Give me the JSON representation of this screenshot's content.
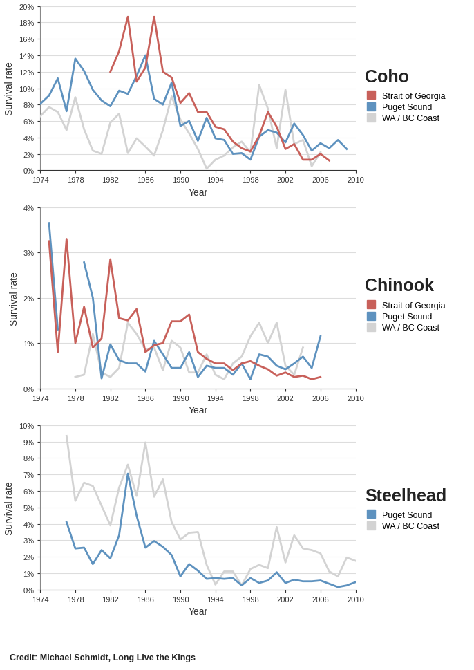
{
  "chart_data": [
    {
      "type": "line",
      "title": "Coho",
      "xlabel": "Year",
      "ylabel": "Survival rate",
      "x": [
        1974,
        1975,
        1976,
        1977,
        1978,
        1979,
        1980,
        1981,
        1982,
        1983,
        1984,
        1985,
        1986,
        1987,
        1988,
        1989,
        1990,
        1991,
        1992,
        1993,
        1994,
        1995,
        1996,
        1997,
        1998,
        1999,
        2000,
        2001,
        2002,
        2003,
        2004,
        2005,
        2006,
        2007,
        2008,
        2009
      ],
      "series": [
        {
          "name": "Strait of Georgia",
          "color": "#c8605a",
          "values": [
            null,
            null,
            null,
            null,
            null,
            null,
            null,
            null,
            12.0,
            14.5,
            18.7,
            10.8,
            12.5,
            18.7,
            12.0,
            11.3,
            8.2,
            9.4,
            7.1,
            7.1,
            5.3,
            5.0,
            3.5,
            2.7,
            2.3,
            4.2,
            7.1,
            5.3,
            2.6,
            3.2,
            1.3,
            1.3,
            2.0,
            1.2,
            null,
            null
          ]
        },
        {
          "name": "Puget Sound",
          "color": "#5e92bf",
          "values": [
            8.1,
            9.1,
            11.2,
            7.2,
            13.6,
            12.1,
            9.8,
            8.5,
            7.8,
            9.7,
            9.3,
            11.5,
            14.0,
            8.7,
            8.0,
            10.7,
            5.4,
            6.0,
            3.6,
            6.4,
            3.9,
            3.7,
            2.0,
            2.1,
            1.3,
            4.1,
            4.9,
            4.6,
            3.4,
            5.7,
            4.3,
            2.4,
            3.3,
            2.7,
            3.7,
            2.6
          ]
        },
        {
          "name": "WA / BC Coast",
          "color": "#d3d3d3",
          "values": [
            6.6,
            7.7,
            7.1,
            4.9,
            8.9,
            5.0,
            2.4,
            2.0,
            5.8,
            6.9,
            2.1,
            3.9,
            2.9,
            1.8,
            4.9,
            9.0,
            6.2,
            4.5,
            2.6,
            0.2,
            1.3,
            1.8,
            2.8,
            3.5,
            2.2,
            10.4,
            7.5,
            2.7,
            9.8,
            3.2,
            3.7,
            0.5,
            2.2,
            null,
            null,
            null
          ]
        }
      ],
      "xlim": [
        1974,
        2010
      ],
      "xticks": [
        1974,
        1978,
        1982,
        1986,
        1990,
        1994,
        1998,
        2002,
        2006,
        2010
      ],
      "ylim": [
        0,
        20
      ],
      "yticks": [
        {
          "value": 0,
          "label": "0%"
        },
        {
          "value": 2,
          "label": "2%"
        },
        {
          "value": 4,
          "label": "4%"
        },
        {
          "value": 6,
          "label": "6%"
        },
        {
          "value": 8,
          "label": "8%"
        },
        {
          "value": 10,
          "label": "10%"
        },
        {
          "value": 12,
          "label": "12%"
        },
        {
          "value": 14,
          "label": "14%"
        },
        {
          "value": 16,
          "label": "16%"
        },
        {
          "value": 18,
          "label": "18%"
        },
        {
          "value": 20,
          "label": "20%"
        }
      ],
      "grid": true,
      "legend": "upper left"
    },
    {
      "type": "line",
      "title": "Chinook",
      "xlabel": "Year",
      "ylabel": "Survival rate",
      "x": [
        1975,
        1976,
        1977,
        1978,
        1979,
        1980,
        1981,
        1982,
        1983,
        1984,
        1985,
        1986,
        1987,
        1988,
        1989,
        1990,
        1991,
        1992,
        1993,
        1994,
        1995,
        1996,
        1997,
        1998,
        1999,
        2000,
        2001,
        2002,
        2003,
        2004,
        2005,
        2006
      ],
      "series": [
        {
          "name": "Strait of Georgia",
          "color": "#c8605a",
          "values": [
            3.25,
            0.8,
            3.3,
            1.0,
            1.8,
            0.9,
            1.1,
            2.85,
            1.55,
            1.5,
            1.75,
            0.8,
            0.95,
            1.0,
            1.48,
            1.48,
            1.63,
            0.8,
            0.65,
            0.55,
            0.55,
            0.4,
            0.55,
            0.6,
            0.5,
            0.42,
            0.28,
            0.35,
            0.25,
            0.28,
            0.2,
            0.25
          ]
        },
        {
          "name": "Puget Sound",
          "color": "#5e92bf",
          "values": [
            3.65,
            1.3,
            null,
            null,
            2.78,
            2.0,
            0.22,
            0.97,
            0.62,
            0.55,
            0.55,
            0.37,
            1.05,
            0.75,
            0.45,
            0.45,
            0.8,
            0.25,
            0.5,
            0.45,
            0.45,
            0.3,
            0.55,
            0.2,
            0.75,
            0.7,
            0.5,
            0.42,
            0.55,
            0.7,
            0.45,
            1.15
          ]
        },
        {
          "name": "WA / BC Coast",
          "color": "#d3d3d3",
          "values": [
            null,
            null,
            null,
            0.25,
            0.3,
            1.2,
            0.35,
            0.25,
            0.45,
            1.45,
            1.2,
            0.85,
            0.9,
            0.4,
            1.05,
            0.9,
            0.35,
            0.35,
            0.75,
            0.3,
            0.2,
            0.55,
            0.7,
            1.15,
            1.45,
            1.0,
            1.45,
            0.5,
            0.3,
            0.9,
            null,
            null
          ]
        }
      ],
      "xlim": [
        1974,
        2010
      ],
      "xticks": [
        1974,
        1978,
        1982,
        1986,
        1990,
        1994,
        1998,
        2002,
        2006,
        2010
      ],
      "ylim": [
        0,
        4
      ],
      "yticks": [
        {
          "value": 0,
          "label": "0%"
        },
        {
          "value": 1,
          "label": "1%"
        },
        {
          "value": 2,
          "label": "2%"
        },
        {
          "value": 3,
          "label": "3%"
        },
        {
          "value": 4,
          "label": "4%"
        }
      ],
      "grid": true,
      "legend": "upper left"
    },
    {
      "type": "line",
      "title": "Steelhead",
      "xlabel": "Year",
      "ylabel": "Survival rate",
      "x": [
        1977,
        1978,
        1979,
        1980,
        1981,
        1982,
        1983,
        1984,
        1985,
        1986,
        1987,
        1988,
        1989,
        1990,
        1991,
        1992,
        1993,
        1994,
        1995,
        1996,
        1997,
        1998,
        1999,
        2000,
        2001,
        2002,
        2003,
        2004,
        2005,
        2006,
        2007,
        2008,
        2009,
        2010
      ],
      "series": [
        {
          "name": "Puget Sound",
          "color": "#5e92bf",
          "values": [
            4.1,
            2.5,
            2.55,
            1.55,
            2.4,
            1.9,
            3.3,
            7.05,
            4.5,
            2.55,
            2.95,
            2.6,
            2.1,
            0.8,
            1.55,
            1.15,
            0.65,
            0.7,
            0.65,
            0.7,
            0.25,
            0.7,
            0.4,
            0.55,
            1.05,
            0.4,
            0.6,
            0.5,
            0.5,
            0.55,
            0.35,
            0.15,
            0.25,
            0.45
          ]
        },
        {
          "name": "WA / BC Coast",
          "color": "#d3d3d3",
          "values": [
            9.35,
            5.4,
            6.5,
            6.3,
            5.1,
            3.9,
            6.2,
            7.6,
            5.7,
            8.95,
            5.65,
            6.7,
            4.1,
            3.05,
            3.45,
            3.5,
            1.5,
            0.3,
            1.1,
            1.1,
            0.25,
            1.25,
            1.5,
            1.3,
            3.8,
            1.65,
            3.3,
            2.5,
            2.4,
            2.2,
            1.1,
            0.8,
            1.95,
            1.75
          ]
        }
      ],
      "xlim": [
        1974,
        2010
      ],
      "xticks": [
        1974,
        1978,
        1982,
        1986,
        1990,
        1994,
        1998,
        2002,
        2006,
        2010
      ],
      "ylim": [
        0,
        10
      ],
      "yticks": [
        {
          "value": 0,
          "label": "0%"
        },
        {
          "value": 1,
          "label": "1%"
        },
        {
          "value": 2,
          "label": "2%"
        },
        {
          "value": 3,
          "label": "3%"
        },
        {
          "value": 4,
          "label": "4%"
        },
        {
          "value": 5,
          "label": "5%"
        },
        {
          "value": 6,
          "label": "6%"
        },
        {
          "value": 7,
          "label": "7%"
        },
        {
          "value": 8,
          "label": "8%"
        },
        {
          "value": 9,
          "label": "9%"
        },
        {
          "value": 10,
          "label": "10%"
        }
      ],
      "grid": true,
      "legend": "upper left"
    }
  ],
  "credit": "Credit: Michael Schmidt, Long Live the Kings"
}
